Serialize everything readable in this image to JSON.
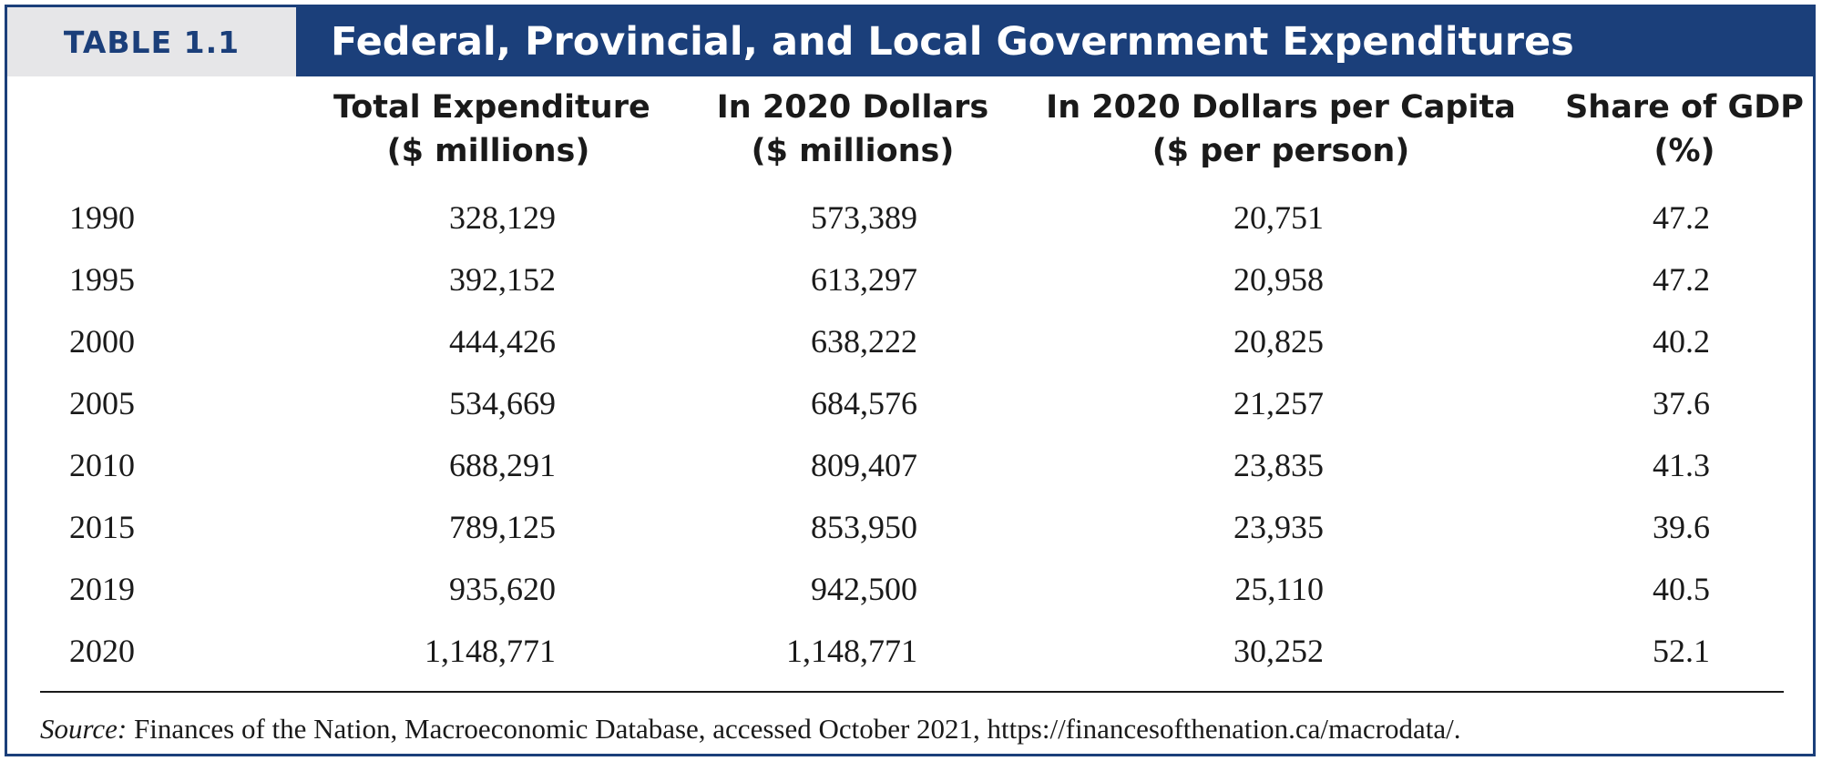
{
  "table": {
    "label": "TABLE 1.1",
    "title": "Federal, Provincial, and Local Government Expenditures",
    "columns": [
      {
        "line1": "Total Expenditure",
        "line2": "($ millions)"
      },
      {
        "line1": "In 2020 Dollars",
        "line2": "($ millions)"
      },
      {
        "line1": "In 2020 Dollars per Capita",
        "line2": "($ per person)"
      },
      {
        "line1": "Share of GDP",
        "line2": "(%)"
      }
    ],
    "rows": [
      {
        "year": "1990",
        "total": "328,129",
        "real": "573,389",
        "per_capita": "20,751",
        "gdp_share": "47.2"
      },
      {
        "year": "1995",
        "total": "392,152",
        "real": "613,297",
        "per_capita": "20,958",
        "gdp_share": "47.2"
      },
      {
        "year": "2000",
        "total": "444,426",
        "real": "638,222",
        "per_capita": "20,825",
        "gdp_share": "40.2"
      },
      {
        "year": "2005",
        "total": "534,669",
        "real": "684,576",
        "per_capita": "21,257",
        "gdp_share": "37.6"
      },
      {
        "year": "2010",
        "total": "688,291",
        "real": "809,407",
        "per_capita": "23,835",
        "gdp_share": "41.3"
      },
      {
        "year": "2015",
        "total": "789,125",
        "real": "853,950",
        "per_capita": "23,935",
        "gdp_share": "39.6"
      },
      {
        "year": "2019",
        "total": "935,620",
        "real": "942,500",
        "per_capita": "25,110",
        "gdp_share": "40.5"
      },
      {
        "year": "2020",
        "total": "1,148,771",
        "real": "1,148,771",
        "per_capita": "30,252",
        "gdp_share": "52.1"
      }
    ],
    "source_label": "Source:",
    "source_text": "Finances of the Nation, Macroeconomic Database, accessed October 2021, https://financesofthenation.ca/macrodata/."
  },
  "colors": {
    "header_blue": "#1b3f7a",
    "label_gray": "#e6e6e8"
  }
}
